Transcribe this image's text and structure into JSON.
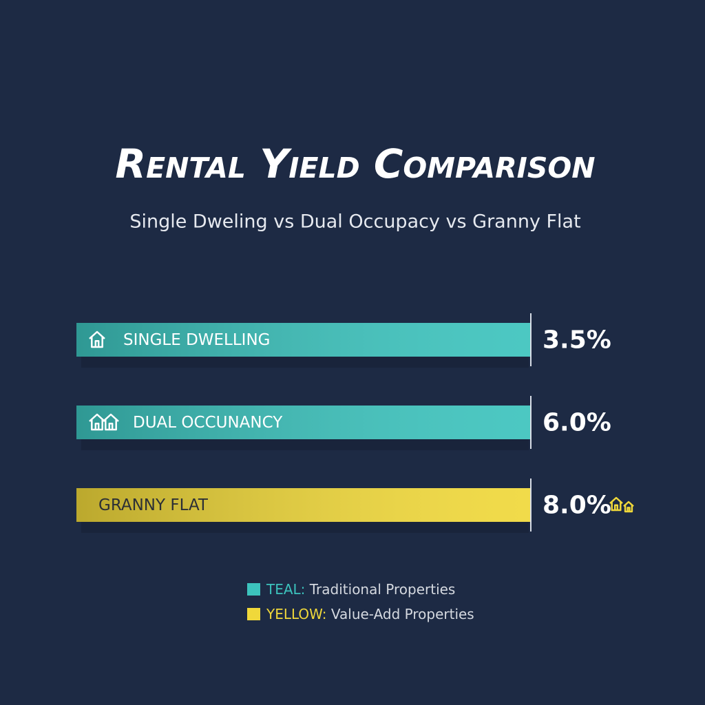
{
  "chart_data": {
    "type": "bar",
    "title": "Rental Yield Comparison",
    "subtitle": "Single Dweling vs Dual Occupacy vs Granny Flat",
    "categories": [
      "SINGLE DWELLING",
      "DUAL OCCUNANCY",
      "GRANNY FLAT"
    ],
    "values": [
      3.5,
      6.0,
      8.0
    ],
    "value_labels": [
      "3.5%",
      "6.0%",
      "8.0%"
    ],
    "colors": [
      "#3cc3bd",
      "#3cc3bd",
      "#f0d83a"
    ],
    "legend": [
      {
        "key": "TEAL:",
        "label": "Traditional Properties",
        "color": "#3cc3bd"
      },
      {
        "key": "YELLOW:",
        "label": "Value-Add Properties",
        "color": "#f0d83a"
      }
    ]
  }
}
